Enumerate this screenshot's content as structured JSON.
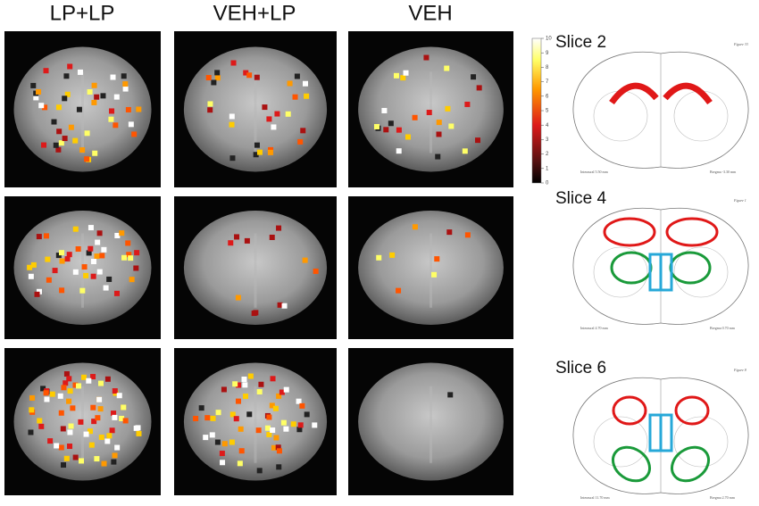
{
  "column_titles": [
    "LP+LP",
    "VEH+LP",
    "VEH"
  ],
  "colorbar": {
    "range": [
      0,
      10
    ],
    "ticks": [
      0,
      1,
      2,
      3,
      4,
      5,
      6,
      7,
      8,
      9,
      10
    ]
  },
  "atlas": [
    {
      "label": "Slice 2",
      "figure": "Figure 33",
      "interaural": "Interaural 5.50 mm",
      "bregma": "Bregma -3.30 mm"
    },
    {
      "label": "Slice 4",
      "figure": "Figure 1",
      "interaural": "Interaural 4.70 mm",
      "bregma": "Bregma 0.70 mm"
    },
    {
      "label": "Slice 6",
      "figure": "Figure 8",
      "interaural": "Interaural 11.70 mm",
      "bregma": "Bregma 2.70 mm"
    }
  ]
}
